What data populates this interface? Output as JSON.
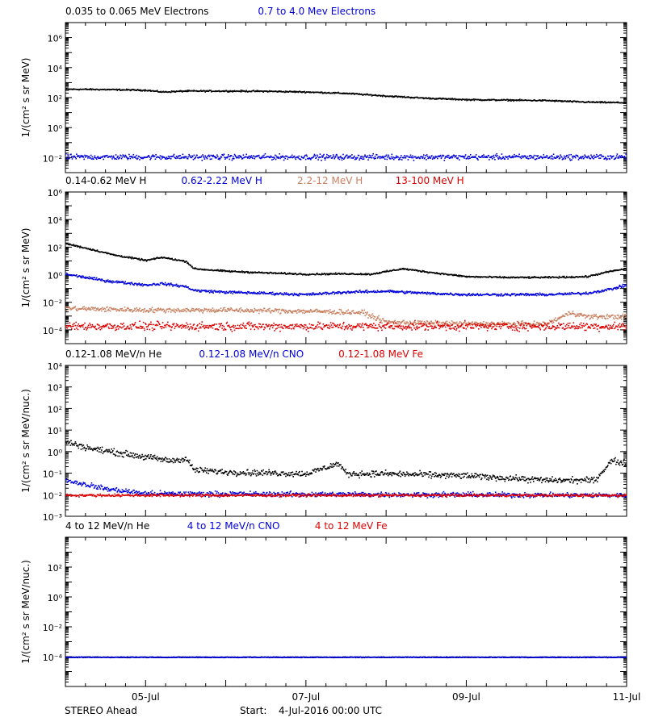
{
  "footer": {
    "spacecraft": "STEREO Ahead",
    "start_label": "Start:",
    "start_value": "4-Jul-2016 00:00 UTC"
  },
  "x_axis": {
    "tick_labels": [
      "05-Jul",
      "07-Jul",
      "09-Jul",
      "11-Jul"
    ],
    "range_days": [
      0,
      7
    ]
  },
  "chart_data": [
    {
      "type": "scatter",
      "title_entries": [
        {
          "text": "0.035 to 0.065 MeV Electrons",
          "color": "#000000"
        },
        {
          "text": "0.7 to 4.0 Mev Electrons",
          "color": "#0000dd"
        }
      ],
      "ylabel": "1/(cm² s sr MeV)",
      "yscale": "log",
      "ylim_exp": [
        -3,
        7
      ],
      "ytick_exps": [
        -2,
        0,
        2,
        4,
        6
      ],
      "ytick_labels": [
        "10⁻²",
        "10⁰",
        "10²",
        "10⁴",
        "10⁶"
      ],
      "series": [
        {
          "name": "0.035 to 0.065 MeV Electrons",
          "color": "#000000",
          "x": [
            0,
            0.5,
            1,
            1.2,
            1.5,
            2,
            2.5,
            3,
            3.5,
            4,
            4.5,
            5,
            5.5,
            6,
            6.5,
            7
          ],
          "y": [
            400,
            380,
            340,
            260,
            300,
            300,
            290,
            260,
            210,
            140,
            100,
            80,
            75,
            70,
            55,
            50
          ],
          "scatter": 0.04
        },
        {
          "name": "0.7 to 4.0 Mev Electrons",
          "color": "#0000dd",
          "x": [
            0,
            7
          ],
          "y": [
            0.012,
            0.012
          ],
          "scatter": 0.15
        }
      ]
    },
    {
      "type": "scatter",
      "title_entries": [
        {
          "text": "0.14-0.62 MeV H",
          "color": "#000000"
        },
        {
          "text": "0.62-2.22 MeV H",
          "color": "#0000dd"
        },
        {
          "text": "2.2-12 MeV H",
          "color": "#c88060"
        },
        {
          "text": "13-100 MeV H",
          "color": "#dd0000"
        }
      ],
      "ylabel": "1/(cm² s sr MeV)",
      "yscale": "log",
      "ylim_exp": [
        -5,
        6
      ],
      "ytick_exps": [
        -4,
        -2,
        0,
        2,
        4,
        6
      ],
      "ytick_labels": [
        "10⁻⁴",
        "10⁻²",
        "10⁰",
        "10²",
        "10⁴",
        "10⁶"
      ],
      "series": [
        {
          "name": "0.14-0.62 MeV H",
          "color": "#000000",
          "x": [
            0,
            0.3,
            0.6,
            1,
            1.2,
            1.5,
            1.6,
            2,
            2.5,
            3,
            3.5,
            3.8,
            4.2,
            4.6,
            5,
            5.5,
            6,
            6.5,
            6.8,
            7
          ],
          "y": [
            200,
            80,
            30,
            12,
            20,
            10,
            3,
            2,
            1.5,
            1.2,
            1.3,
            1.2,
            3,
            1.5,
            0.8,
            0.7,
            0.7,
            0.8,
            2,
            3
          ],
          "scatter": 0.05
        },
        {
          "name": "0.62-2.22 MeV H",
          "color": "#0000dd",
          "x": [
            0,
            0.5,
            1,
            1.2,
            1.5,
            1.6,
            2,
            2.5,
            3,
            3.5,
            4,
            4.5,
            5,
            5.5,
            6,
            6.5,
            6.8,
            7
          ],
          "y": [
            1.2,
            0.4,
            0.2,
            0.25,
            0.15,
            0.08,
            0.06,
            0.05,
            0.04,
            0.06,
            0.07,
            0.05,
            0.04,
            0.04,
            0.04,
            0.05,
            0.1,
            0.2
          ],
          "scatter": 0.08
        },
        {
          "name": "2.2-12 MeV H",
          "color": "#c88060",
          "x": [
            0,
            1,
            2,
            3,
            3.7,
            4,
            5,
            6,
            6.3,
            6.5,
            7
          ],
          "y": [
            0.004,
            0.003,
            0.003,
            0.0025,
            0.002,
            0.0004,
            0.0003,
            0.0003,
            0.002,
            0.001,
            0.001
          ],
          "scatter": 0.15
        },
        {
          "name": "13-100 MeV H",
          "color": "#dd0000",
          "x": [
            0,
            7
          ],
          "y": [
            0.0002,
            0.0002
          ],
          "scatter": 0.25
        }
      ]
    },
    {
      "type": "scatter",
      "title_entries": [
        {
          "text": "0.12-1.08 MeV/n He",
          "color": "#000000"
        },
        {
          "text": "0.12-1.08 MeV/n CNO",
          "color": "#0000dd"
        },
        {
          "text": "0.12-1.08 MeV Fe",
          "color": "#dd0000"
        }
      ],
      "ylabel": "1/(cm² s sr MeV/nuc.)",
      "yscale": "log",
      "ylim_exp": [
        -3,
        4
      ],
      "ytick_exps": [
        -3,
        -2,
        -1,
        0,
        1,
        2,
        3,
        4
      ],
      "ytick_labels": [
        "10⁻³",
        "10⁻²",
        "10⁻¹",
        "10⁰",
        "10¹",
        "10²",
        "10³",
        "10⁴"
      ],
      "series": [
        {
          "name": "0.12-1.08 MeV/n He",
          "color": "#000000",
          "x": [
            0,
            0.3,
            0.6,
            1,
            1.3,
            1.5,
            1.6,
            2,
            3,
            3.4,
            3.5,
            4,
            5,
            6,
            6.6,
            6.8,
            7
          ],
          "y": [
            3,
            1.5,
            1.0,
            0.6,
            0.4,
            0.5,
            0.15,
            0.12,
            0.1,
            0.3,
            0.1,
            0.1,
            0.08,
            0.05,
            0.05,
            0.4,
            0.3
          ],
          "scatter": 0.12
        },
        {
          "name": "0.12-1.08 MeV/n CNO",
          "color": "#0000dd",
          "x": [
            0,
            0.5,
            1,
            7
          ],
          "y": [
            0.05,
            0.02,
            0.012,
            0.01
          ],
          "scatter": 0.1
        },
        {
          "name": "0.12-1.08 MeV Fe",
          "color": "#dd0000",
          "x": [
            0,
            7
          ],
          "y": [
            0.01,
            0.01
          ],
          "scatter": 0.05
        }
      ]
    },
    {
      "type": "scatter",
      "title_entries": [
        {
          "text": "4 to 12 MeV/n He",
          "color": "#000000"
        },
        {
          "text": "4 to 12 MeV/n CNO",
          "color": "#0000dd"
        },
        {
          "text": "4 to 12 MeV Fe",
          "color": "#dd0000"
        }
      ],
      "ylabel": "1/(cm² s sr MeV/nuc.)",
      "yscale": "log",
      "ylim_exp": [
        -6,
        4
      ],
      "ytick_exps": [
        -4,
        -2,
        0,
        2
      ],
      "ytick_labels": [
        "10⁻⁴",
        "10⁻²",
        "10⁰",
        "10²"
      ],
      "series": [
        {
          "name": "4 to 12 MeV/n He",
          "color": "#000000",
          "x": [
            0,
            7
          ],
          "y": [
            0.0001,
            0.0001
          ],
          "scatter": 0.02
        },
        {
          "name": "4 to 12 MeV/n CNO",
          "color": "#0000dd",
          "x": [
            0,
            7
          ],
          "y": [
            0.0001,
            0.0001
          ],
          "scatter": 0.02
        }
      ]
    }
  ]
}
